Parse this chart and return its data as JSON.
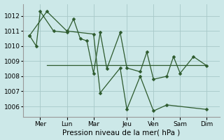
{
  "background_color": "#cce8e8",
  "line_color": "#2d5a2d",
  "grid_color": "#a8c8c8",
  "xlabel": "Pression niveau de la mer( hPa )",
  "xlabel_fontsize": 7.5,
  "yticks": [
    1006,
    1007,
    1008,
    1009,
    1010,
    1011,
    1012
  ],
  "ylim": [
    1005.3,
    1012.8
  ],
  "xlim": [
    -0.3,
    14.5
  ],
  "day_labels": [
    "Mer",
    "Lun",
    "Mar",
    "Jeu",
    "Ven",
    "Sam",
    "Dim"
  ],
  "day_positions": [
    1.0,
    3.0,
    5.0,
    7.5,
    9.5,
    11.5,
    13.5
  ],
  "series1": {
    "x": [
      0.2,
      0.7,
      1.0,
      2.0,
      3.0,
      3.5,
      4.0,
      4.5,
      5.0,
      5.5,
      6.0,
      7.0,
      7.5,
      8.5,
      9.0,
      9.5,
      10.5,
      11.0,
      11.5,
      12.5,
      13.5
    ],
    "y": [
      1010.7,
      1010.0,
      1012.3,
      1011.0,
      1010.9,
      1011.8,
      1010.5,
      1010.35,
      1008.2,
      1010.9,
      1008.5,
      1010.9,
      1008.55,
      1008.3,
      1009.6,
      1007.8,
      1008.0,
      1009.3,
      1008.2,
      1009.3,
      1008.7
    ]
  },
  "series2": {
    "x": [
      0.2,
      1.5,
      3.0,
      5.0,
      5.5,
      7.0,
      7.5,
      8.5,
      9.5,
      10.5,
      13.5
    ],
    "y": [
      1010.7,
      1012.3,
      1011.0,
      1010.8,
      1006.9,
      1008.55,
      1005.8,
      1008.0,
      1005.7,
      1006.1,
      1005.8
    ]
  },
  "series3_flat": {
    "x": [
      1.5,
      13.5
    ],
    "y": [
      1008.75,
      1008.75
    ]
  }
}
